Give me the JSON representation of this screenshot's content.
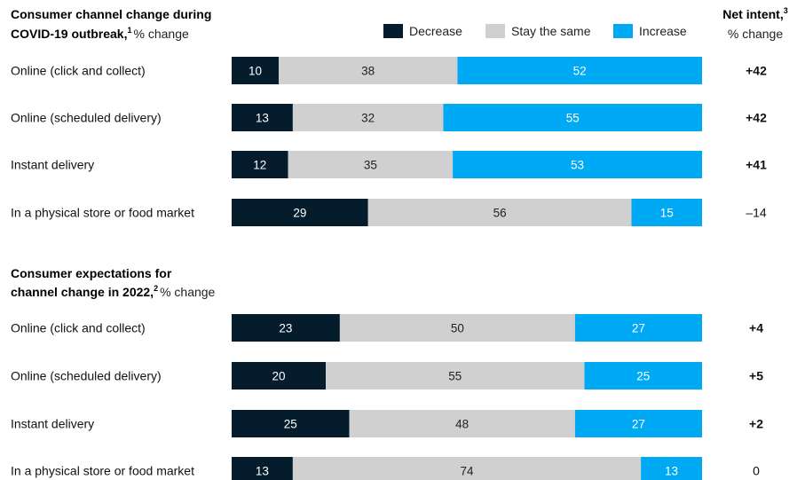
{
  "legend": [
    {
      "label": "Decrease",
      "color": "#051c2c"
    },
    {
      "label": "Stay the same",
      "color": "#d0d0d0"
    },
    {
      "label": "Increase",
      "color": "#00a9f4"
    }
  ],
  "net_header": {
    "title": "Net intent,",
    "sup": "3",
    "unit": "% change"
  },
  "chart_data": [
    {
      "type": "bar",
      "stacked": true,
      "orientation": "horizontal",
      "title_lines": [
        "Consumer channel change during",
        "COVID-19 outbreak,"
      ],
      "title_sup": "1",
      "title_unit": "% change",
      "categories": [
        "Online (click and collect)",
        "Online (scheduled delivery)",
        "Instant delivery",
        "In a physical store or food market"
      ],
      "series": [
        {
          "name": "Decrease",
          "values": [
            10,
            13,
            12,
            29
          ]
        },
        {
          "name": "Stay the same",
          "values": [
            38,
            32,
            35,
            56
          ]
        },
        {
          "name": "Increase",
          "values": [
            52,
            55,
            53,
            15
          ]
        }
      ],
      "net_intent": [
        "+42",
        "+42",
        "+41",
        "–14"
      ],
      "xlim": [
        0,
        100
      ]
    },
    {
      "type": "bar",
      "stacked": true,
      "orientation": "horizontal",
      "title_lines": [
        "Consumer expectations for",
        "channel change in 2022,"
      ],
      "title_sup": "2",
      "title_unit": "% change",
      "categories": [
        "Online (click and collect)",
        "Online (scheduled delivery)",
        "Instant delivery",
        "In a physical store or food market"
      ],
      "series": [
        {
          "name": "Decrease",
          "values": [
            23,
            20,
            25,
            13
          ]
        },
        {
          "name": "Stay the same",
          "values": [
            50,
            55,
            48,
            74
          ]
        },
        {
          "name": "Increase",
          "values": [
            27,
            25,
            27,
            13
          ]
        }
      ],
      "net_intent": [
        "+4",
        "+5",
        "+2",
        "0"
      ],
      "xlim": [
        0,
        100
      ]
    }
  ]
}
